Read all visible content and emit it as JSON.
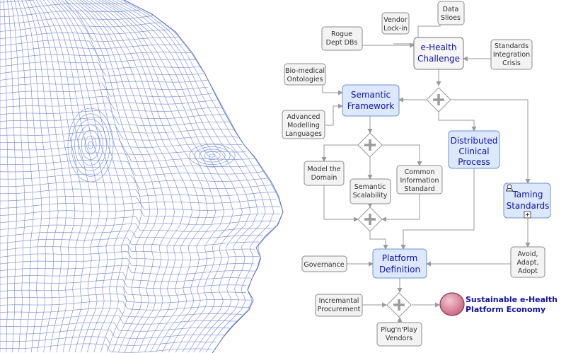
{
  "nodes": {
    "ehealth_challenge": [
      "e-Health",
      "Challenge"
    ],
    "vendor_lockin": [
      "Vendor",
      "Lock-in"
    ],
    "data_silos": [
      "Data",
      "Slioes"
    ],
    "rogue_dept_dbs": [
      "Rogue",
      "Dept DBs"
    ],
    "standards_integration_crisis": [
      "Standards",
      "Integration",
      "Crisis"
    ],
    "biomedical_ontologies": [
      "Bio-medical",
      "Ontologies"
    ],
    "semantic_framework": [
      "Semantic",
      "Framework"
    ],
    "advanced_modelling_languages": [
      "Advanced",
      "Modelling",
      "Languages"
    ],
    "distributed_clinical_process": [
      "Distributed",
      "Clinical",
      "Process"
    ],
    "model_the_domain": [
      "Model the",
      "Domain"
    ],
    "semantic_scalability": [
      "Semantic",
      "Scalability"
    ],
    "common_information_standard": [
      "Common",
      "Information",
      "Standard"
    ],
    "taming_standards": [
      "Taming",
      "Standards"
    ],
    "governance": [
      "Governance"
    ],
    "platform_definition": [
      "Platform",
      "Definition"
    ],
    "avoid_adapt_adopt": [
      "Avoid,",
      "Adapt,",
      "Adopt"
    ],
    "incremental_procurement": [
      "Incremantal",
      "Procurement"
    ],
    "plugnplay_vendors": [
      "Plug'n'Play",
      "Vendors"
    ]
  },
  "goal": [
    "Sustainable e-Health",
    "Platform Economy"
  ],
  "colors": {
    "task_fill": "#dce8fb",
    "task_stroke": "#6d95d8",
    "label_blue": "#1111bb",
    "goal_fill": "#dd8fa5",
    "mesh": "#6f86dd"
  },
  "icons": {
    "gateway": "parallel-gateway-plus-icon",
    "subprocess_marker": "plus-marker-icon",
    "taming_standards_badge": "person-icon"
  }
}
